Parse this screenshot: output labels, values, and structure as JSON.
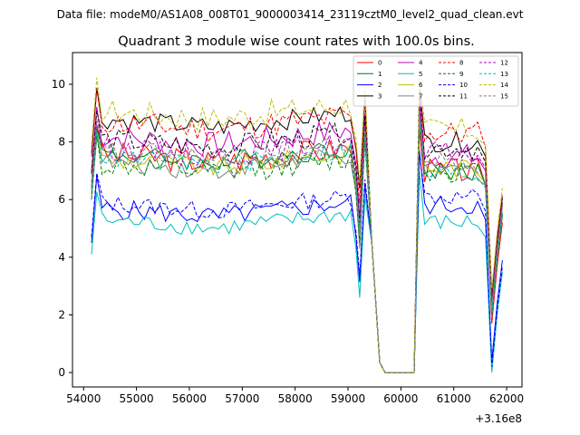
{
  "header": {
    "data_file": "Data file: modeM0/AS1A08_008T01_9000003414_23119cztM0_level2_quad_clean.evt"
  },
  "chart_data": {
    "type": "line",
    "title": "Quadrant 3 module wise count rates with 100.0s bins.",
    "xlabel": "",
    "ylabel": "",
    "x_offset_label": "+3.16e8",
    "xlim": [
      53790,
      62290
    ],
    "ylim": [
      -0.5,
      11.1
    ],
    "x_ticks": [
      54000,
      55000,
      56000,
      57000,
      58000,
      59000,
      60000,
      61000,
      62000
    ],
    "x_tick_labels": [
      "54000",
      "55000",
      "56000",
      "57000",
      "58000",
      "59000",
      "60000",
      "61000",
      "62000"
    ],
    "y_ticks": [
      0,
      2,
      4,
      6,
      8,
      10
    ],
    "y_tick_labels": [
      "0",
      "2",
      "4",
      "6",
      "8",
      "10"
    ],
    "legend_position": "top-right",
    "shared_segment": [
      {
        "x": 59450,
        "y": 4.5
      },
      {
        "x": 59600,
        "y": 0.35
      },
      {
        "x": 59700,
        "y": 0.0
      },
      {
        "x": 60000,
        "y": 0.0
      },
      {
        "x": 60250,
        "y": 0.0
      }
    ],
    "series": [
      {
        "name": "0",
        "color": "#ff0000",
        "dash": "solid",
        "level": 7.6,
        "amp": 0.45,
        "post": 7.0,
        "tail": 5.2
      },
      {
        "name": "1",
        "color": "#008000",
        "dash": "solid",
        "level": 7.6,
        "amp": 0.35,
        "post": 7.0,
        "tail": 5.5
      },
      {
        "name": "2",
        "color": "#0000ff",
        "dash": "solid",
        "level": 5.7,
        "amp": 0.35,
        "post": 5.8,
        "tail": 3.9
      },
      {
        "name": "3",
        "color": "#000000",
        "dash": "solid",
        "level": 8.8,
        "amp": 0.35,
        "post": 8.0,
        "tail": 6.1
      },
      {
        "name": "4",
        "color": "#bf00bf",
        "dash": "solid",
        "level": 8.2,
        "amp": 0.45,
        "post": 7.5,
        "tail": 5.8
      },
      {
        "name": "5",
        "color": "#00bfbf",
        "dash": "solid",
        "level": 5.3,
        "amp": 0.3,
        "post": 5.2,
        "tail": 3.5
      },
      {
        "name": "6",
        "color": "#bfbf00",
        "dash": "solid",
        "level": 7.4,
        "amp": 0.35,
        "post": 7.1,
        "tail": 5.6
      },
      {
        "name": "7",
        "color": "#808080",
        "dash": "solid",
        "level": 7.3,
        "amp": 0.35,
        "post": 7.0,
        "tail": 5.4
      },
      {
        "name": "8",
        "color": "#ff0000",
        "dash": "dashed",
        "level": 8.7,
        "amp": 0.45,
        "post": 8.3,
        "tail": 6.2
      },
      {
        "name": "9",
        "color": "#008000",
        "dash": "dashed",
        "level": 7.2,
        "amp": 0.4,
        "post": 7.0,
        "tail": 5.5
      },
      {
        "name": "10",
        "color": "#0000ff",
        "dash": "dashed",
        "level": 5.9,
        "amp": 0.3,
        "post": 6.1,
        "tail": 3.7
      },
      {
        "name": "11",
        "color": "#000000",
        "dash": "dashed",
        "level": 8.1,
        "amp": 0.4,
        "post": 7.8,
        "tail": 6.0
      },
      {
        "name": "12",
        "color": "#bf00bf",
        "dash": "dashed",
        "level": 7.8,
        "amp": 0.4,
        "post": 7.6,
        "tail": 5.9
      },
      {
        "name": "13",
        "color": "#00bfbf",
        "dash": "dashed",
        "level": 7.5,
        "amp": 0.35,
        "post": 6.9,
        "tail": 5.6
      },
      {
        "name": "14",
        "color": "#bfbf00",
        "dash": "dashed",
        "level": 9.1,
        "amp": 0.45,
        "post": 8.4,
        "tail": 6.4
      },
      {
        "name": "15",
        "color": "#808080",
        "dash": "dashed",
        "level": 7.7,
        "amp": 0.4,
        "post": 7.3,
        "tail": 5.8
      }
    ]
  }
}
